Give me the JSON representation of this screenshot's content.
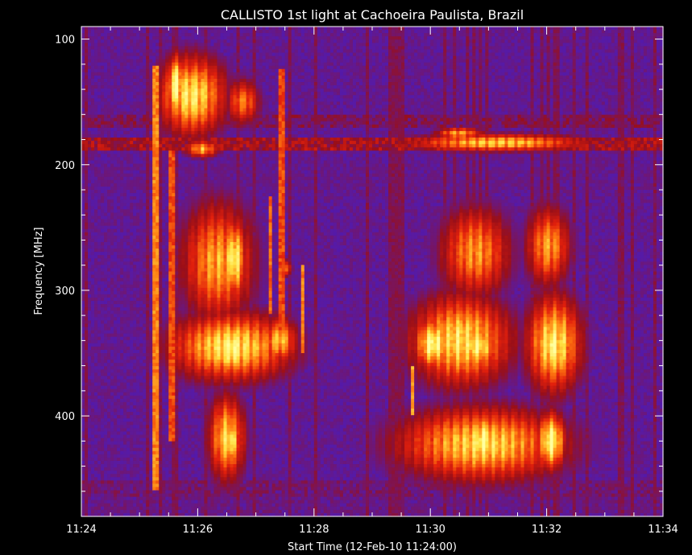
{
  "chart_data": {
    "type": "heatmap",
    "title": "CALLISTO 1st light at Cachoeira Paulista, Brazil",
    "xlabel": "Start Time (12-Feb-10 11:24:00)",
    "ylabel": "Frequency [MHz]",
    "xlim_minutes_after_1124": [
      0,
      10
    ],
    "ylim_mhz": [
      480,
      90
    ],
    "x_ticks": [
      "11:24",
      "11:26",
      "11:28",
      "11:30",
      "11:32",
      "11:34"
    ],
    "y_ticks": [
      "100",
      "200",
      "300",
      "400"
    ],
    "y_tick_values": [
      100,
      200,
      300,
      400
    ],
    "colormap": [
      "#1c14ff",
      "#5a1aa0",
      "#9a0f18",
      "#e2200c",
      "#ff7a10",
      "#ffe040",
      "#ffffa0"
    ],
    "background_level": 0.15,
    "interference_bands_mhz": [
      {
        "center": 165,
        "halfwidth": 3,
        "level": 0.3
      },
      {
        "center": 183,
        "halfwidth": 2,
        "level": 0.42
      },
      {
        "center": 210,
        "halfwidth": 8,
        "level": 0.2
      },
      {
        "center": 457,
        "halfwidth": 4,
        "level": 0.26
      },
      {
        "center": 470,
        "halfwidth": 6,
        "level": 0.22
      }
    ],
    "bursts": [
      {
        "t": [
          1.25,
          2.55
        ],
        "f": [
          110,
          180
        ],
        "level": 0.85
      },
      {
        "t": [
          1.45,
          1.8
        ],
        "f": [
          110,
          165
        ],
        "level": 0.97
      },
      {
        "t": [
          1.75,
          2.4
        ],
        "f": [
          180,
          195
        ],
        "level": 0.7
      },
      {
        "t": [
          2.45,
          3.1
        ],
        "f": [
          130,
          170
        ],
        "level": 0.6
      },
      {
        "t": [
          1.65,
          3.05
        ],
        "f": [
          225,
          330
        ],
        "level": 0.7
      },
      {
        "t": [
          2.4,
          2.85
        ],
        "f": [
          240,
          310
        ],
        "level": 0.92
      },
      {
        "t": [
          1.4,
          3.75
        ],
        "f": [
          315,
          375
        ],
        "level": 0.85
      },
      {
        "t": [
          2.3,
          2.9
        ],
        "f": [
          325,
          370
        ],
        "level": 0.98
      },
      {
        "t": [
          3.05,
          3.75
        ],
        "f": [
          320,
          360
        ],
        "level": 0.75
      },
      {
        "t": [
          2.15,
          2.85
        ],
        "f": [
          380,
          455
        ],
        "level": 0.78
      },
      {
        "t": [
          2.35,
          2.75
        ],
        "f": [
          400,
          440
        ],
        "level": 0.92
      },
      {
        "t": [
          3.4,
          3.65
        ],
        "f": [
          275,
          290
        ],
        "level": 0.5
      },
      {
        "t": [
          5.45,
          8.85
        ],
        "f": [
          175,
          190
        ],
        "level": 0.78
      },
      {
        "t": [
          6.05,
          6.95
        ],
        "f": [
          170,
          180
        ],
        "level": 0.7
      },
      {
        "t": [
          6.1,
          7.45
        ],
        "f": [
          230,
          310
        ],
        "level": 0.66
      },
      {
        "t": [
          7.6,
          8.45
        ],
        "f": [
          230,
          300
        ],
        "level": 0.68
      },
      {
        "t": [
          5.55,
          7.5
        ],
        "f": [
          300,
          380
        ],
        "level": 0.82
      },
      {
        "t": [
          5.7,
          6.4
        ],
        "f": [
          320,
          365
        ],
        "level": 0.97
      },
      {
        "t": [
          6.4,
          7.2
        ],
        "f": [
          325,
          365
        ],
        "level": 0.9
      },
      {
        "t": [
          7.6,
          8.65
        ],
        "f": [
          300,
          385
        ],
        "level": 0.86
      },
      {
        "t": [
          7.85,
          8.35
        ],
        "f": [
          320,
          370
        ],
        "level": 0.97
      },
      {
        "t": [
          5.25,
          8.5
        ],
        "f": [
          390,
          455
        ],
        "level": 0.8
      },
      {
        "t": [
          6.6,
          7.2
        ],
        "f": [
          395,
          445
        ],
        "level": 0.97
      },
      {
        "t": [
          7.8,
          8.35
        ],
        "f": [
          395,
          445
        ],
        "level": 0.95
      }
    ],
    "streaks": [
      {
        "t": 1.28,
        "f": [
          120,
          460
        ],
        "level": 0.6
      },
      {
        "t": 1.55,
        "f": [
          190,
          420
        ],
        "level": 0.5
      },
      {
        "t": 3.25,
        "f": [
          225,
          320
        ],
        "level": 0.55
      },
      {
        "t": 3.45,
        "f": [
          125,
          340
        ],
        "level": 0.5
      },
      {
        "t": 3.8,
        "f": [
          280,
          350
        ],
        "level": 0.6
      },
      {
        "t": 5.7,
        "f": [
          360,
          400
        ],
        "level": 0.65
      }
    ]
  }
}
